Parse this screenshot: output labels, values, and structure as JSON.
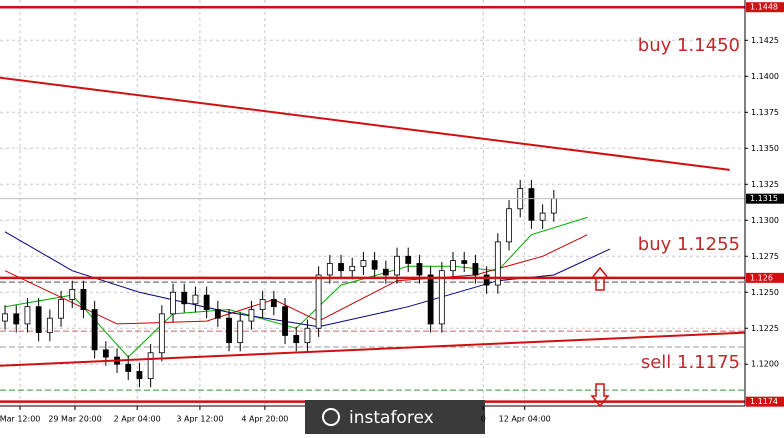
{
  "chart_data": {
    "type": "candlestick",
    "ylim": [
      1.1171,
      1.1453
    ],
    "xlim": [
      -0.45,
      66.07
    ],
    "yticks": [
      {
        "value": 1.12,
        "label": "1.1200"
      },
      1.1225,
      {
        "value": 1.125,
        "label": "1.1250"
      },
      1.1275,
      {
        "value": 1.13,
        "label": "1.1300"
      },
      1.1325,
      {
        "value": 1.135,
        "label": "1.1350"
      },
      1.1375,
      {
        "value": 1.14,
        "label": "1.1400"
      },
      1.1425
    ],
    "xticks": [
      {
        "value": 1.34,
        "label": "Mar 12:00"
      },
      {
        "value": 6.25,
        "label": "29 Mar 20:00"
      },
      {
        "value": 11.8,
        "label": "2 Apr 04:00"
      },
      {
        "value": 17.4,
        "label": "3 Apr 12:00"
      },
      {
        "value": 23.2,
        "label": "4 Apr 20:00"
      },
      {
        "value": 42.7,
        "label": "0"
      },
      {
        "value": 46.4,
        "label": "12 Apr 04:00"
      }
    ],
    "grid": true,
    "up_color": "#ffffff",
    "down_color": "#000000",
    "open": [
      1.123,
      1.1235,
      1.1228,
      1.124,
      1.1222,
      1.1232,
      1.1245,
      1.1252,
      1.1238,
      1.121,
      1.1205,
      1.12,
      1.1195,
      1.119,
      1.1208,
      1.1235,
      1.125,
      1.1242,
      1.1248,
      1.1238,
      1.1232,
      1.1215,
      1.123,
      1.1238,
      1.1245,
      1.124,
      1.122,
      1.1215,
      1.1225,
      1.1262,
      1.127,
      1.1265,
      1.1268,
      1.1272,
      1.1266,
      1.1262,
      1.1275,
      1.127,
      1.1262,
      1.1228,
      1.1265,
      1.1272,
      1.127,
      1.1262,
      1.1255,
      1.1285,
      1.1308,
      1.1322,
      1.13,
      1.1305
    ],
    "high": [
      1.1241,
      1.1241,
      1.1246,
      1.1246,
      1.1238,
      1.1251,
      1.1258,
      1.1258,
      1.1244,
      1.1216,
      1.1211,
      1.1206,
      1.1201,
      1.1214,
      1.1241,
      1.1256,
      1.1256,
      1.1254,
      1.1254,
      1.1244,
      1.1238,
      1.1236,
      1.1244,
      1.1251,
      1.1251,
      1.1246,
      1.1226,
      1.1231,
      1.1268,
      1.1276,
      1.1276,
      1.1274,
      1.1278,
      1.1278,
      1.1272,
      1.1281,
      1.1281,
      1.1276,
      1.1268,
      1.1271,
      1.1278,
      1.1278,
      1.1276,
      1.1268,
      1.1291,
      1.1314,
      1.1328,
      1.1328,
      1.1311,
      1.1321
    ],
    "low": [
      1.1224,
      1.1222,
      1.1222,
      1.1216,
      1.1216,
      1.1226,
      1.1239,
      1.1232,
      1.1204,
      1.1199,
      1.1194,
      1.1189,
      1.1184,
      1.1184,
      1.1202,
      1.1229,
      1.1236,
      1.1236,
      1.1232,
      1.1226,
      1.1209,
      1.1209,
      1.1224,
      1.1232,
      1.1234,
      1.1214,
      1.1209,
      1.1209,
      1.1219,
      1.1256,
      1.1259,
      1.1259,
      1.1262,
      1.126,
      1.1256,
      1.1256,
      1.1264,
      1.1256,
      1.1222,
      1.1222,
      1.1259,
      1.1264,
      1.1256,
      1.1249,
      1.1249,
      1.1279,
      1.1302,
      1.1294,
      1.1294,
      1.1299
    ],
    "close": [
      1.1235,
      1.1228,
      1.124,
      1.1222,
      1.1232,
      1.1245,
      1.1252,
      1.1238,
      1.121,
      1.1205,
      1.12,
      1.1195,
      1.119,
      1.1208,
      1.1235,
      1.125,
      1.1242,
      1.1248,
      1.1238,
      1.1232,
      1.1215,
      1.123,
      1.1238,
      1.1245,
      1.124,
      1.122,
      1.1215,
      1.1225,
      1.1262,
      1.127,
      1.1265,
      1.1268,
      1.1272,
      1.1266,
      1.1262,
      1.1275,
      1.127,
      1.1262,
      1.1228,
      1.1265,
      1.1272,
      1.127,
      1.1262,
      1.1255,
      1.1285,
      1.1308,
      1.1322,
      1.13,
      1.1305,
      1.1315
    ],
    "series": [
      {
        "color": "#00aa00",
        "x": [
          0,
          6,
          11,
          15,
          20,
          26,
          30,
          36,
          40,
          44,
          47,
          52
        ],
        "values": [
          1.124,
          1.1248,
          1.1205,
          1.1235,
          1.1238,
          1.1225,
          1.1255,
          1.1268,
          1.1268,
          1.1265,
          1.129,
          1.1302
        ]
      },
      {
        "color": "#cc0000",
        "x": [
          0,
          10,
          18,
          24,
          28,
          35,
          42,
          48,
          52
        ],
        "values": [
          1.1265,
          1.1228,
          1.123,
          1.1245,
          1.123,
          1.1258,
          1.1262,
          1.1275,
          1.129
        ]
      },
      {
        "color": "#000080",
        "x": [
          0,
          6,
          12,
          20,
          28,
          36,
          44,
          49,
          54
        ],
        "values": [
          1.1292,
          1.1265,
          1.125,
          1.1236,
          1.1226,
          1.124,
          1.1258,
          1.1262,
          1.128
        ]
      }
    ],
    "trendlines": [
      {
        "color": "#d01010",
        "x": [
          -0.45,
          64.7
        ],
        "values": [
          1.1399,
          1.1335
        ]
      },
      {
        "color": "#d01010",
        "x": [
          -0.45,
          66.07
        ],
        "values": [
          1.1199,
          1.1222
        ]
      }
    ],
    "levels": [
      {
        "value": 1.1448,
        "color": "#d01010"
      },
      {
        "value": 1.126,
        "color": "#d01010"
      },
      {
        "value": 1.1174,
        "color": "#d01010"
      }
    ],
    "dashed_levels": [
      {
        "value": 1.1257,
        "color": "#555555"
      },
      {
        "value": 1.1223,
        "color": "#cc6666"
      },
      {
        "value": 1.1212,
        "color": "#999999"
      },
      {
        "value": 1.1182,
        "color": "#339933"
      }
    ],
    "current_price": 1.1315,
    "annotations": [
      {
        "text": "buy 1.1450",
        "price": 1.1421
      },
      {
        "text": "buy 1.1255",
        "price": 1.1283
      },
      {
        "text": "sell 1.1175",
        "price": 1.1201
      }
    ],
    "logo": "instaforex"
  }
}
